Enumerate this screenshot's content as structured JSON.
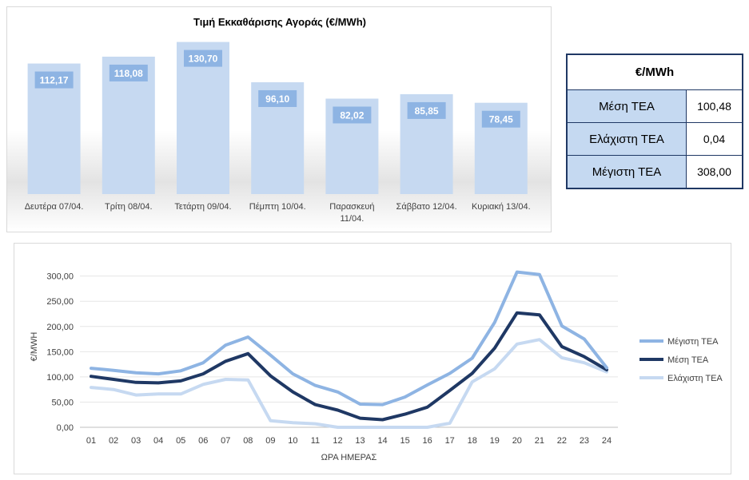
{
  "chart_data": [
    {
      "type": "bar",
      "title": "Τιμή Εκκαθάρισης Αγοράς (€/MWh)",
      "categories": [
        "Δευτέρα 07/04.",
        "Τρίτη 08/04.",
        "Τετάρτη 09/04.",
        "Πέμπτη 10/04.",
        "Παρασκευή 11/04.",
        "Σάββατο 12/04.",
        "Κυριακή 13/04."
      ],
      "category_lines": [
        [
          "Δευτέρα 07/04."
        ],
        [
          "Τρίτη 08/04."
        ],
        [
          "Τετάρτη 09/04."
        ],
        [
          "Πέμπτη 10/04."
        ],
        [
          "Παρασκευή",
          "11/04."
        ],
        [
          "Σάββατο 12/04."
        ],
        [
          "Κυριακή 13/04."
        ]
      ],
      "values": [
        112.17,
        118.08,
        130.7,
        96.1,
        82.02,
        85.85,
        78.45
      ],
      "value_labels": [
        "112,17",
        "118,08",
        "130,70",
        "96,10",
        "82,02",
        "85,85",
        "78,45"
      ],
      "ylim": [
        0,
        140
      ],
      "colors": {
        "bar": "#c6d9f1",
        "label_bg": "#8eb4e3",
        "label_text": "#ffffff"
      }
    },
    {
      "type": "line",
      "xlabel": "ΩΡΑ ΗΜΕΡΑΣ",
      "ylabel": "€/MWH",
      "x": [
        "01",
        "02",
        "03",
        "04",
        "05",
        "06",
        "07",
        "08",
        "09",
        "10",
        "11",
        "12",
        "13",
        "14",
        "15",
        "16",
        "17",
        "18",
        "19",
        "20",
        "21",
        "22",
        "23",
        "24"
      ],
      "yticks": [
        "0,00",
        "50,00",
        "100,00",
        "150,00",
        "200,00",
        "250,00",
        "300,00"
      ],
      "ylim": [
        0,
        320
      ],
      "grid": true,
      "legend_position": "right",
      "series": [
        {
          "name": "Μέγιστη ΤΕΑ",
          "color": "#8eb4e3",
          "values": [
            117,
            113,
            108,
            106,
            112,
            128,
            163,
            179,
            143,
            106,
            83,
            70,
            46,
            45,
            60,
            84,
            107,
            137,
            208,
            308,
            303,
            201,
            175,
            118
          ]
        },
        {
          "name": "Μέση ΤΕΑ",
          "color": "#1f3864",
          "values": [
            101,
            95,
            89,
            88,
            92,
            106,
            131,
            146,
            102,
            70,
            45,
            34,
            18,
            15,
            26,
            40,
            73,
            107,
            157,
            227,
            223,
            160,
            140,
            114
          ]
        },
        {
          "name": "Ελάχιστη ΤΕΑ",
          "color": "#c6d9f1",
          "values": [
            79,
            75,
            64,
            66,
            66,
            85,
            95,
            94,
            13,
            9,
            7,
            0.04,
            0.04,
            0.04,
            0.04,
            0.04,
            8,
            90,
            116,
            165,
            174,
            138,
            128,
            110
          ]
        }
      ]
    }
  ],
  "stats_table": {
    "header": "€/MWh",
    "rows": [
      {
        "label": "Μέση ΤΕΑ",
        "value": "100,48"
      },
      {
        "label": "Ελάχιστη ΤΕΑ",
        "value": "0,04"
      },
      {
        "label": "Μέγιστη ΤΕΑ",
        "value": "308,00"
      }
    ]
  }
}
